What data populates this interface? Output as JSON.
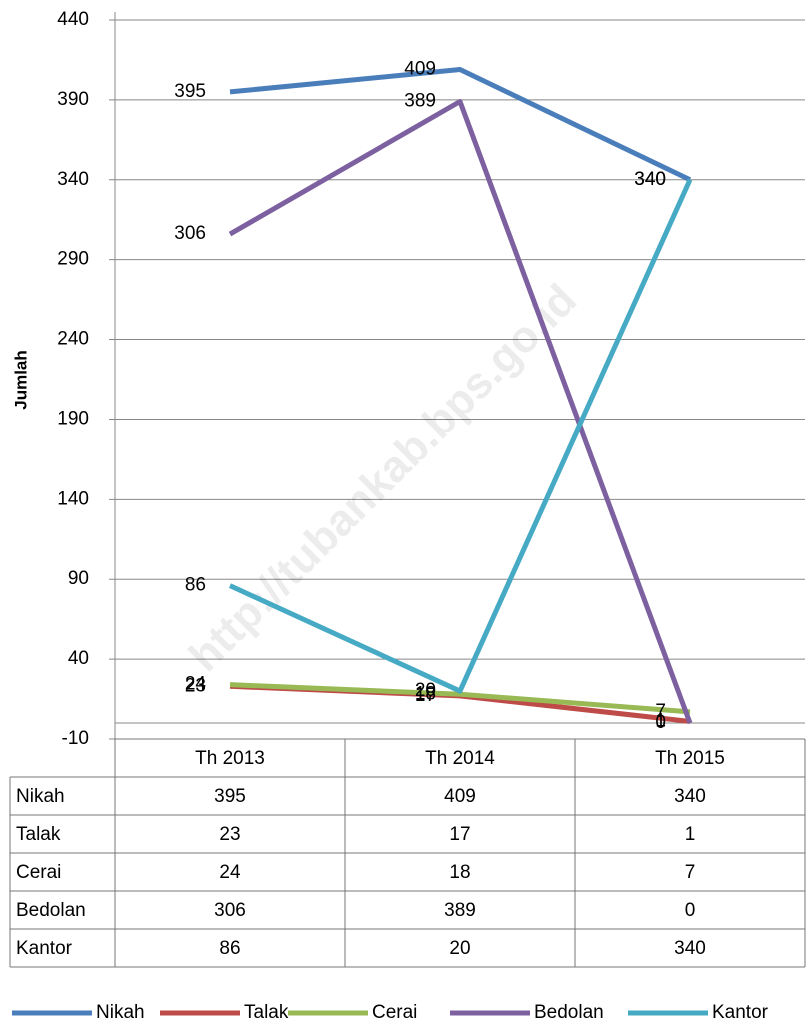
{
  "chart_data": {
    "type": "line",
    "y_label": "Jumlah",
    "watermark": "http://tubankab.bps.go.id",
    "categories": [
      "Th 2013",
      "Th 2014",
      "Th 2015"
    ],
    "series": [
      {
        "name": "Nikah",
        "color": "#4a7ebb",
        "values": [
          395,
          409,
          340
        ]
      },
      {
        "name": "Talak",
        "color": "#be4b48",
        "values": [
          23,
          17,
          1
        ]
      },
      {
        "name": "Cerai",
        "color": "#98b954",
        "values": [
          24,
          18,
          7
        ]
      },
      {
        "name": "Bedolan",
        "color": "#7d60a0",
        "values": [
          306,
          389,
          0
        ]
      },
      {
        "name": "Kantor",
        "color": "#46aac5",
        "values": [
          86,
          20,
          340
        ]
      }
    ],
    "ylim": [
      -10,
      440
    ],
    "yticks": [
      -10,
      40,
      90,
      140,
      190,
      240,
      290,
      340,
      390,
      440
    ],
    "grid": true,
    "legend": "bottom"
  }
}
